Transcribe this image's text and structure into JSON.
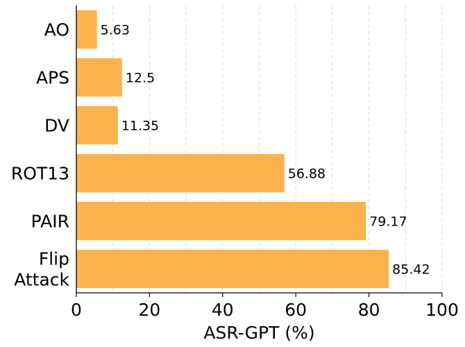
{
  "chart_data": {
    "type": "bar",
    "orientation": "horizontal",
    "categories": [
      [
        "AO"
      ],
      [
        "APS"
      ],
      [
        "DV"
      ],
      [
        "ROT13"
      ],
      [
        "PAIR"
      ],
      [
        "Flip",
        "Attack"
      ]
    ],
    "values": [
      5.63,
      12.5,
      11.35,
      56.88,
      79.17,
      85.42
    ],
    "data_labels": [
      "5.63",
      "12.5",
      "11.35",
      "56.88",
      "79.17",
      "85.42"
    ],
    "xlabel": "ASR-GPT (%)",
    "xlim": [
      0,
      100
    ],
    "xticks": [
      0,
      20,
      40,
      60,
      80,
      100
    ],
    "grid": "vertical dashed",
    "bar_color": "#FDB24E",
    "gridline_color": "#d9d9d9"
  }
}
